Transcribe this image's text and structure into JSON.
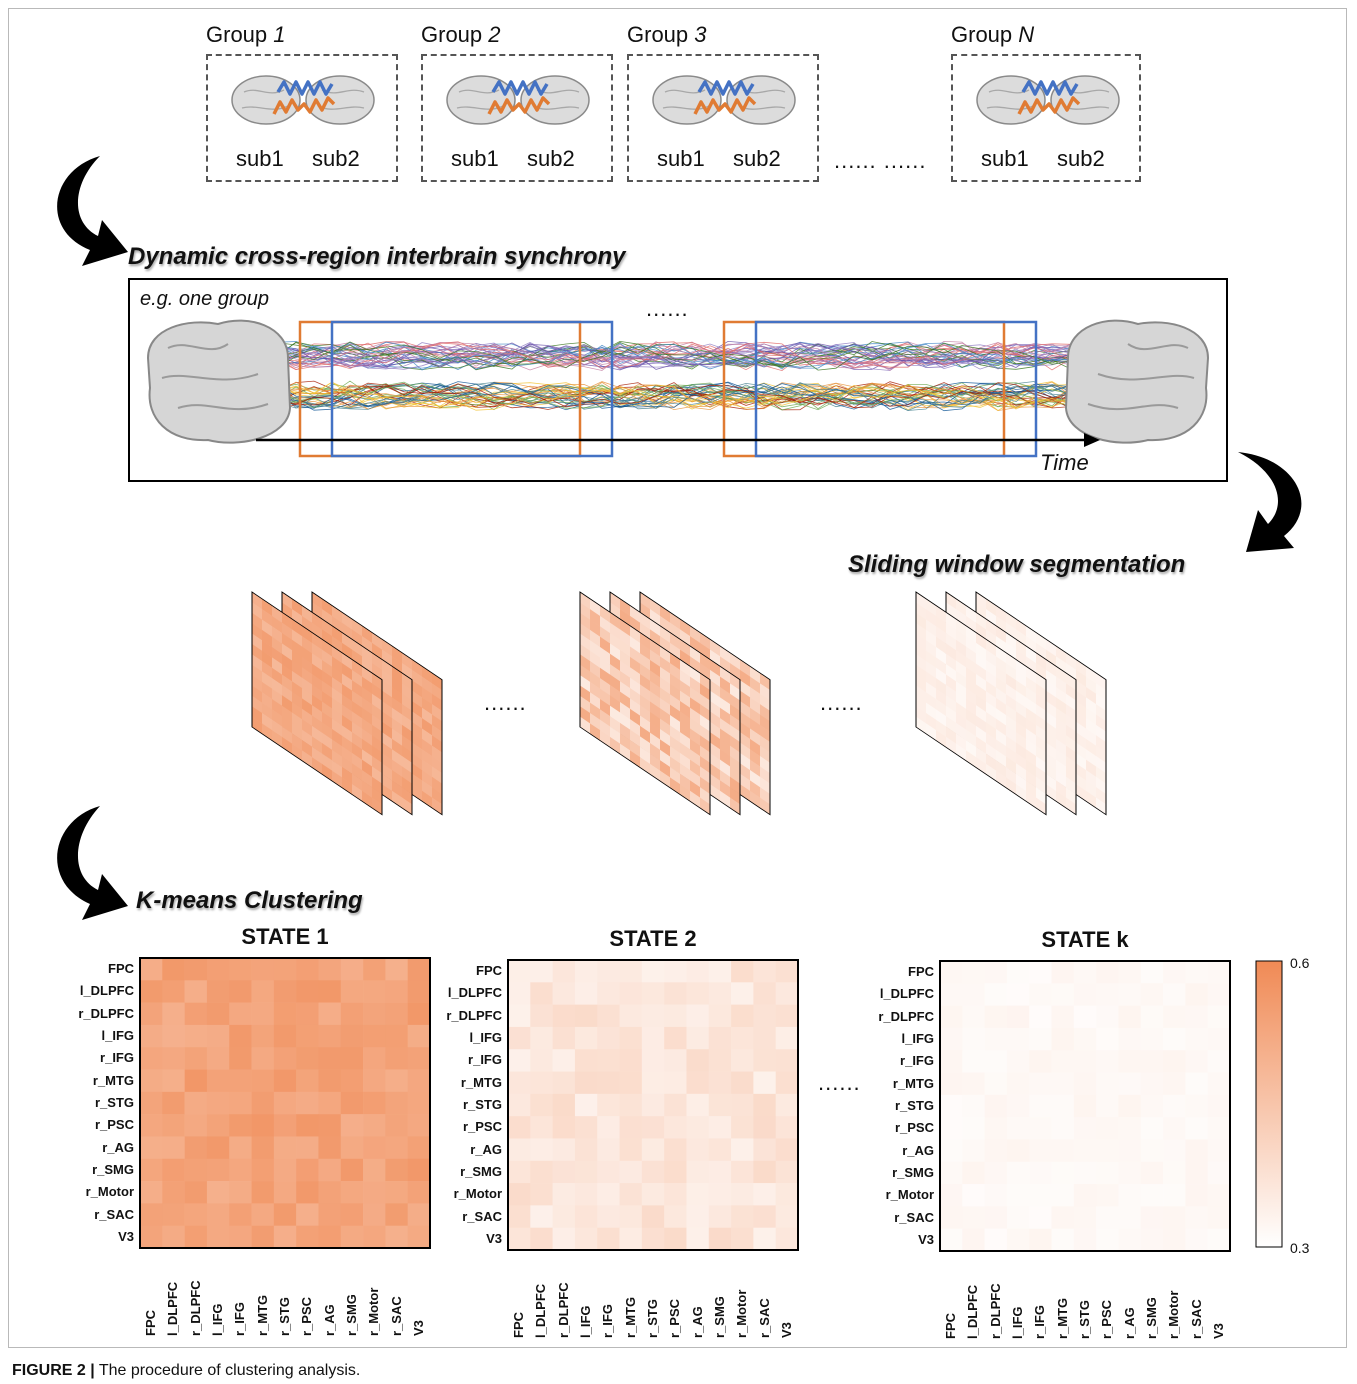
{
  "groups": [
    {
      "prefix": "Group",
      "index": "1",
      "sub_a": "sub1",
      "sub_b": "sub2"
    },
    {
      "prefix": "Group",
      "index": "2",
      "sub_a": "sub1",
      "sub_b": "sub2"
    },
    {
      "prefix": "Group",
      "index": "3",
      "sub_a": "sub1",
      "sub_b": "sub2"
    },
    {
      "prefix": "Group",
      "index": "N",
      "sub_a": "sub1",
      "sub_b": "sub2"
    }
  ],
  "groups_ellipsis": "...... ......",
  "dynamic_title": "Dynamic cross-region interbrain synchrony",
  "example_label": "e.g. one group",
  "timeline_ellipsis": "......",
  "time_label": "Time",
  "sliding_title": "Sliding window segmentation",
  "stack_ellipsis_1": "......",
  "stack_ellipsis_2": "......",
  "kmeans_title": "K-means Clustering",
  "states": [
    {
      "title": "STATE 1"
    },
    {
      "title": "STATE 2"
    },
    {
      "title": "STATE k"
    }
  ],
  "states_ellipsis": "......",
  "regions": [
    "FPC",
    "l_DLPFC",
    "r_DLPFC",
    "l_IFG",
    "r_IFG",
    "r_MTG",
    "r_STG",
    "r_PSC",
    "r_AG",
    "r_SMG",
    "r_Motor",
    "r_SAC",
    "V3"
  ],
  "colorbar": {
    "max_label": "0.6",
    "min_label": "0.3",
    "max": 0.6,
    "min": 0.3,
    "high_color": "#f08a55",
    "low_color": "#ffffff"
  },
  "colors": {
    "blue": "#4472c4",
    "orange": "#e07b33",
    "heatmap": "#f08a55"
  },
  "caption": {
    "label": "FIGURE 2 |",
    "text": " The procedure of clustering analysis."
  }
}
